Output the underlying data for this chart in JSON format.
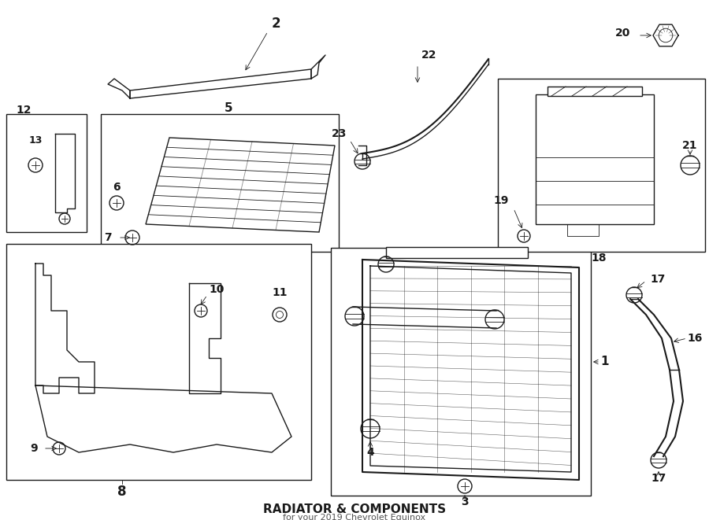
{
  "title": "RADIATOR & COMPONENTS",
  "subtitle": "for your 2019 Chevrolet Equinox",
  "bg_color": "#ffffff",
  "line_color": "#1a1a1a",
  "fig_width": 9.0,
  "fig_height": 6.61,
  "dpi": 100,
  "lw_thin": 0.6,
  "lw_med": 1.0,
  "lw_thick": 1.5,
  "label_fontsize": 9,
  "title_fontsize": 11
}
